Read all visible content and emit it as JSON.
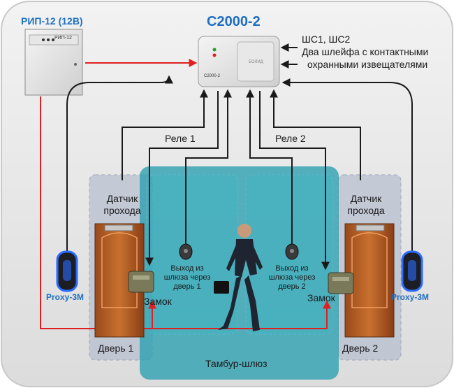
{
  "power_supply": {
    "title": "РИП-12 (12В)",
    "panel_text": "РИП-12"
  },
  "controller": {
    "title": "С2000-2",
    "panel_text": "С2000-2",
    "brand_text": "БОЛИД"
  },
  "loops": {
    "line1": "ШС1, ШС2",
    "line2": "Два шлейфа с контактными",
    "line3": "охранными извещателями"
  },
  "relays": {
    "relay1": "Реле 1",
    "relay2": "Реле 2"
  },
  "sensors": {
    "left": "Датчик прохода",
    "right": "Датчик прохода"
  },
  "exit_buttons": {
    "left": "Выход из шлюза через дверь 1",
    "right": "Выход из шлюза через дверь 2"
  },
  "locks": {
    "left": "Замок",
    "right": "Замок"
  },
  "readers": {
    "left": "Proxy-3M",
    "right": "Proxy-3M"
  },
  "doors": {
    "left": "Дверь 1",
    "right": "Дверь 2"
  },
  "airlock": {
    "label": "Тамбур-шлюз"
  },
  "colors": {
    "power_wire": "#e02020",
    "signal_wire": "#1a1a1a",
    "title_blue": "#1f6fc1",
    "airlock": "#2a9fb0"
  }
}
